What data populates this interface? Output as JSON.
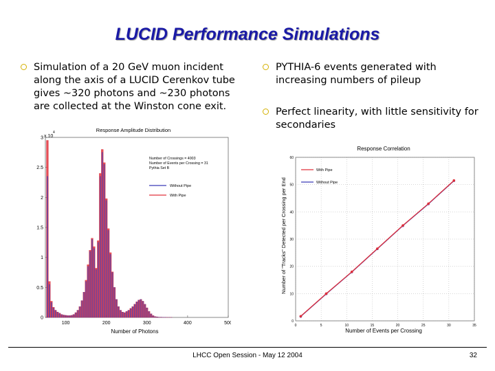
{
  "slide": {
    "title": "LUCID Performance Simulations",
    "bullets": [
      "Simulation of a 20 GeV  muon incident along the axis of a LUCID Cerenkov tube gives ~320 photons and ~230 photons are collected at the Winston cone exit.",
      "PYTHIA-6 events generated with increasing numbers of pileup",
      "Perfect linearity, with little sensitivity for secondaries"
    ],
    "footer": "LHCC Open Session - May 12 2004",
    "page_number": "32",
    "bullet_color": "#d4b000",
    "title_color": "#1a1aa6"
  },
  "chart_data": [
    {
      "type": "bar",
      "title": "Response Amplitude Distribution",
      "xlabel": "Number of Photons",
      "ylabel": "",
      "y_multiplier_label": "x 10",
      "y_multiplier_exponent": "4",
      "xlim": [
        50,
        500
      ],
      "ylim": [
        0,
        3
      ],
      "xticks": [
        "100",
        "200",
        "300",
        "400",
        "500"
      ],
      "yticks": [
        "0",
        "0.5",
        "1",
        "1.5",
        "2",
        "2.5",
        "3"
      ],
      "annotations": [
        "Number of Crossings = 4003",
        "Number of Events per Crossing = 31",
        "Pythia Set B"
      ],
      "legend": [
        "Without Pipe",
        "With Pipe"
      ],
      "bin_width": 5,
      "x": [
        55,
        60,
        65,
        70,
        75,
        80,
        85,
        90,
        95,
        100,
        105,
        110,
        115,
        120,
        125,
        130,
        135,
        140,
        145,
        150,
        155,
        160,
        165,
        170,
        175,
        180,
        185,
        190,
        195,
        200,
        205,
        210,
        215,
        220,
        225,
        230,
        235,
        240,
        245,
        250,
        255,
        260,
        265,
        270,
        275,
        280,
        285,
        290,
        295,
        300,
        305,
        310,
        315,
        320,
        325,
        330,
        335,
        340,
        345,
        350,
        355,
        360,
        365,
        370,
        375,
        380,
        385,
        390,
        395,
        400,
        405,
        410,
        415,
        420,
        425,
        430,
        435,
        440,
        445,
        450,
        455,
        460,
        465,
        470,
        475,
        480,
        485,
        490,
        495,
        500
      ],
      "series": [
        {
          "name": "Without Pipe",
          "values": [
            2.35,
            0.55,
            0.25,
            0.16,
            0.12,
            0.09,
            0.07,
            0.05,
            0.04,
            0.035,
            0.03,
            0.03,
            0.035,
            0.05,
            0.08,
            0.12,
            0.18,
            0.28,
            0.42,
            0.6,
            0.85,
            1.1,
            1.3,
            1.15,
            0.8,
            1.25,
            2.35,
            2.75,
            2.55,
            1.95,
            1.45,
            1.05,
            0.75,
            0.5,
            0.3,
            0.18,
            0.12,
            0.09,
            0.08,
            0.1,
            0.12,
            0.15,
            0.18,
            0.22,
            0.26,
            0.29,
            0.3,
            0.27,
            0.22,
            0.16,
            0.1,
            0.06,
            0.03,
            0.015,
            0.01,
            0.005,
            0.005,
            0.003,
            0.002,
            0.001,
            0.001,
            0.001,
            0,
            0,
            0,
            0,
            0,
            0,
            0,
            0,
            0,
            0,
            0,
            0,
            0,
            0,
            0,
            0,
            0,
            0,
            0,
            0,
            0,
            0,
            0,
            0,
            0,
            0,
            0,
            0
          ]
        },
        {
          "name": "With Pipe",
          "values": [
            2.95,
            0.6,
            0.27,
            0.17,
            0.12,
            0.09,
            0.07,
            0.05,
            0.04,
            0.035,
            0.03,
            0.03,
            0.035,
            0.05,
            0.08,
            0.12,
            0.18,
            0.28,
            0.42,
            0.62,
            0.88,
            1.12,
            1.32,
            1.18,
            0.82,
            1.28,
            2.4,
            2.8,
            2.58,
            1.98,
            1.48,
            1.08,
            0.76,
            0.5,
            0.3,
            0.18,
            0.12,
            0.09,
            0.08,
            0.1,
            0.12,
            0.15,
            0.18,
            0.22,
            0.26,
            0.29,
            0.3,
            0.27,
            0.22,
            0.16,
            0.1,
            0.06,
            0.03,
            0.015,
            0.01,
            0.005,
            0.005,
            0.003,
            0.002,
            0.001,
            0.001,
            0.001,
            0,
            0,
            0,
            0,
            0,
            0,
            0,
            0,
            0,
            0,
            0,
            0,
            0,
            0,
            0,
            0,
            0,
            0,
            0,
            0,
            0,
            0,
            0,
            0,
            0,
            0,
            0,
            0
          ]
        }
      ],
      "colors": {
        "Without Pipe": "#3b3bb8",
        "With Pipe": "#e0303a"
      }
    },
    {
      "type": "line",
      "title": "Response Correlation",
      "xlabel": "Number of Events per Crossing",
      "ylabel": "Number of \"Tracks\" Detected per Crossing per End",
      "xlim": [
        0,
        35
      ],
      "ylim": [
        0,
        60
      ],
      "xticks": [
        "0",
        "5",
        "10",
        "15",
        "20",
        "25",
        "30",
        "35"
      ],
      "yticks": [
        "0",
        "10",
        "20",
        "30",
        "40",
        "50",
        "60"
      ],
      "legend": [
        "With Pipe",
        "Without Pipe"
      ],
      "x": [
        1,
        6,
        11,
        16,
        21,
        26,
        31
      ],
      "series": [
        {
          "name": "With Pipe",
          "values": [
            1.7,
            10,
            18,
            26.5,
            35,
            43,
            51.5
          ]
        },
        {
          "name": "Without Pipe",
          "values": [
            1.6,
            9.9,
            17.9,
            26.4,
            34.9,
            42.9,
            51.4
          ]
        }
      ],
      "colors": {
        "With Pipe": "#e0303a",
        "Without Pipe": "#3b3bb8"
      }
    }
  ]
}
